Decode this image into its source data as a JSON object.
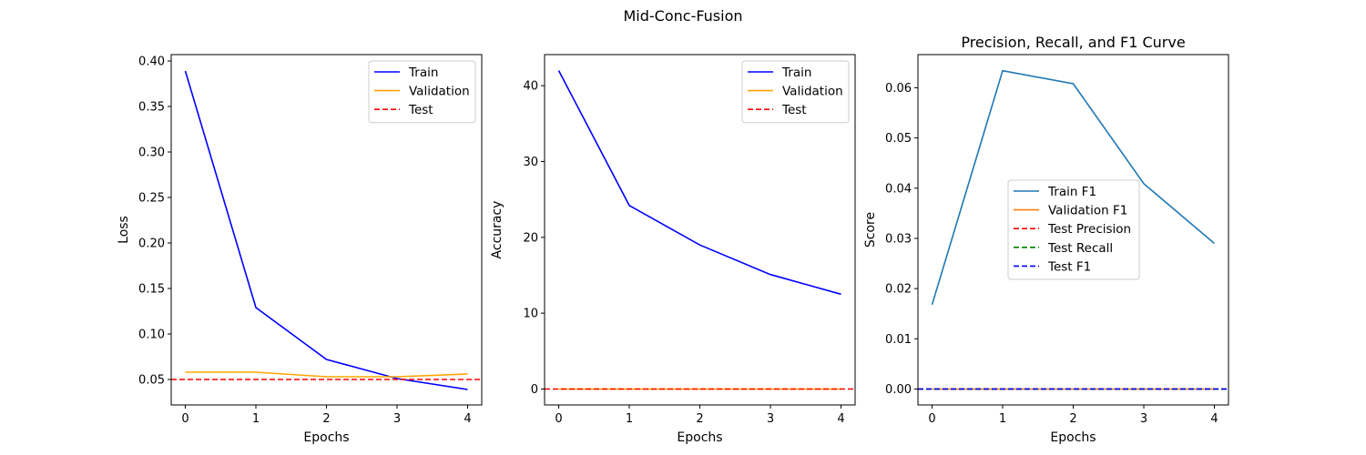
{
  "suptitle": "Mid-Conc-Fusion",
  "chart_data": [
    {
      "type": "line",
      "title": "",
      "xlabel": "Epochs",
      "ylabel": "Loss",
      "x": [
        0,
        1,
        2,
        3,
        4
      ],
      "xticks": [
        "0",
        "1",
        "2",
        "3",
        "4"
      ],
      "yticks": [
        "0.05",
        "0.10",
        "0.15",
        "0.20",
        "0.25",
        "0.30",
        "0.35",
        "0.40"
      ],
      "xlim": [
        -0.2,
        4.2
      ],
      "ylim": [
        0.022,
        0.407
      ],
      "legend_loc": "upper right",
      "series": [
        {
          "name": "Train",
          "values": [
            0.389,
            0.129,
            0.072,
            0.051,
            0.039
          ],
          "color": "#0000ff",
          "dash": "solid"
        },
        {
          "name": "Validation",
          "values": [
            0.058,
            0.058,
            0.053,
            0.053,
            0.056
          ],
          "color": "#ffa500",
          "dash": "solid"
        }
      ],
      "hlines": [
        {
          "name": "Test",
          "value": 0.05,
          "color": "#ff0000",
          "dash": "dashed"
        }
      ]
    },
    {
      "type": "line",
      "title": "",
      "xlabel": "Epochs",
      "ylabel": "Accuracy",
      "x": [
        0,
        1,
        2,
        3,
        4
      ],
      "xticks": [
        "0",
        "1",
        "2",
        "3",
        "4"
      ],
      "yticks": [
        "0",
        "10",
        "20",
        "30",
        "40"
      ],
      "xlim": [
        -0.2,
        4.2
      ],
      "ylim": [
        -2.1,
        44.1
      ],
      "legend_loc": "upper right",
      "series": [
        {
          "name": "Train",
          "values": [
            42.0,
            24.2,
            19.0,
            15.1,
            12.5
          ],
          "color": "#0000ff",
          "dash": "solid"
        },
        {
          "name": "Validation",
          "values": [
            0.0,
            0.0,
            0.0,
            0.0,
            0.0
          ],
          "color": "#ffa500",
          "dash": "solid"
        }
      ],
      "hlines": [
        {
          "name": "Test",
          "value": 0.0,
          "color": "#ff0000",
          "dash": "dashed"
        }
      ]
    },
    {
      "type": "line",
      "title": "Precision, Recall, and F1 Curve",
      "xlabel": "Epochs",
      "ylabel": "Score",
      "x": [
        0,
        1,
        2,
        3,
        4
      ],
      "xticks": [
        "0",
        "1",
        "2",
        "3",
        "4"
      ],
      "yticks": [
        "0.00",
        "0.01",
        "0.02",
        "0.03",
        "0.04",
        "0.05",
        "0.06"
      ],
      "xlim": [
        -0.2,
        4.2
      ],
      "ylim": [
        -0.00317,
        0.0666
      ],
      "legend_loc": "center",
      "series": [
        {
          "name": "Train F1",
          "values": [
            0.0168,
            0.0634,
            0.0608,
            0.0409,
            0.029
          ],
          "color": "#1f77b4",
          "dash": "solid"
        },
        {
          "name": "Validation F1",
          "values": [
            0.0,
            0.0,
            0.0,
            0.0,
            0.0
          ],
          "color": "#ff7f0e",
          "dash": "solid"
        }
      ],
      "hlines": [
        {
          "name": "Test Precision",
          "value": 0.0,
          "color": "#ff0000",
          "dash": "dashed"
        },
        {
          "name": "Test Recall",
          "value": 0.0,
          "color": "#008000",
          "dash": "dashed"
        },
        {
          "name": "Test F1",
          "value": 0.0,
          "color": "#0000ff",
          "dash": "dashed"
        }
      ]
    }
  ]
}
